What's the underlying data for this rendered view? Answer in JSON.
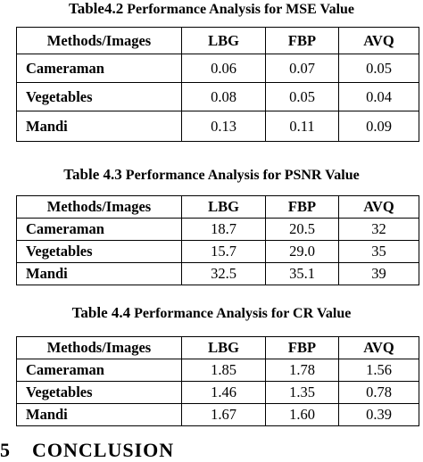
{
  "tables": [
    {
      "caption_num": "Table4.2",
      "caption_text": " Performance Analysis for MSE Value",
      "headers": [
        "Methods/Images",
        "LBG",
        "FBP",
        "AVQ"
      ],
      "rows": [
        [
          "Cameraman",
          "0.06",
          "0.07",
          "0.05"
        ],
        [
          "Vegetables",
          "0.08",
          "0.05",
          "0.04"
        ],
        [
          "Mandi",
          "0.13",
          "0.11",
          "0.09"
        ]
      ]
    },
    {
      "caption_num": "Table 4.3",
      "caption_text": " Performance Analysis for PSNR Value",
      "headers": [
        "Methods/Images",
        "LBG",
        "FBP",
        "AVQ"
      ],
      "rows": [
        [
          "Cameraman",
          "18.7",
          "20.5",
          "32"
        ],
        [
          "Vegetables",
          "15.7",
          "29.0",
          "35"
        ],
        [
          "Mandi",
          "32.5",
          "35.1",
          "39"
        ]
      ]
    },
    {
      "caption_num": "Table 4.4",
      "caption_text": " Performance Analysis for CR Value",
      "headers": [
        "Methods/Images",
        "LBG",
        "FBP",
        "AVQ"
      ],
      "rows": [
        [
          "Cameraman",
          "1.85",
          "1.78",
          "1.56"
        ],
        [
          "Vegetables",
          "1.46",
          "1.35",
          "0.78"
        ],
        [
          "Mandi",
          "1.67",
          "1.60",
          "0.39"
        ]
      ]
    }
  ],
  "section": {
    "number": "5",
    "title": "CONCLUSION"
  }
}
